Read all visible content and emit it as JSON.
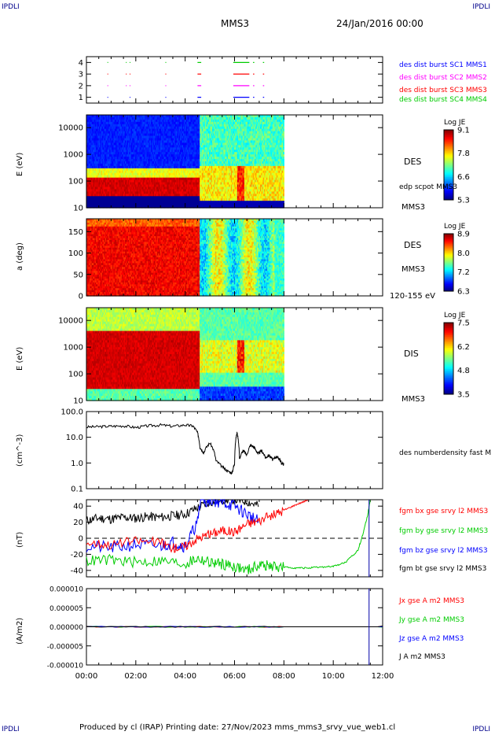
{
  "header": {
    "corner_tl": "IPDLI",
    "corner_tr": "IPDLI",
    "corner_bl": "IPDLI",
    "corner_br": "IPDLI",
    "spacecraft": "MMS3",
    "date": "24/Jan/2016 00:00"
  },
  "footer": {
    "text": "Produced by cl (IRAP)   Printing date: 27/Nov/2023   mms_mms3_srvy_vue_web1.cl"
  },
  "panels": {
    "burst": {
      "legend": [
        {
          "text": "des dist burst SC1 MMS1",
          "color": "#0000ff"
        },
        {
          "text": "des dist burst SC2 MMS2",
          "color": "#ff00ff"
        },
        {
          "text": "des dist burst SC3 MMS3",
          "color": "#ff0000"
        },
        {
          "text": "des dist burst SC4 MMS4",
          "color": "#00cc00"
        }
      ]
    },
    "des_energy": {
      "ylabel": "E (eV)",
      "label1": "DES",
      "label2": "edp scpot MMS3",
      "label3": "MMS3",
      "cbar_title": "Log JE",
      "cbar_ticks": [
        "9.1",
        "7.8",
        "6.6",
        "5.3"
      ]
    },
    "des_pitch": {
      "ylabel": "a (deg)",
      "label1": "DES",
      "label2": "MMS3",
      "label3": "120-155 eV",
      "cbar_title": "Log JE",
      "cbar_ticks": [
        "8.9",
        "8.0",
        "7.2",
        "6.3"
      ]
    },
    "dis_energy": {
      "ylabel": "E (eV)",
      "label1": "DIS",
      "label3": "MMS3",
      "cbar_title": "Log JE",
      "cbar_ticks": [
        "7.5",
        "6.2",
        "4.8",
        "3.5"
      ]
    },
    "density": {
      "ylabel": "(cm^-3)",
      "legend": "des numberdensity fast M"
    },
    "bfield": {
      "ylabel": "(nT)",
      "legend": [
        {
          "text": "fgm bx gse srvy l2 MMS3",
          "color": "#ff0000"
        },
        {
          "text": "fgm by gse srvy l2 MMS3",
          "color": "#00cc00"
        },
        {
          "text": "fgm bz gse srvy l2 MMS3",
          "color": "#0000ff"
        },
        {
          "text": "fgm bt gse srvy l2 MMS3",
          "color": "#000000"
        }
      ]
    },
    "current": {
      "ylabel": "(A/m2)",
      "legend": [
        {
          "text": "Jx gse A m2 MMS3",
          "color": "#ff0000"
        },
        {
          "text": "Jy gse A m2 MMS3",
          "color": "#00cc00"
        },
        {
          "text": "Jz gse A m2 MMS3",
          "color": "#0000ff"
        },
        {
          "text": "J A m2 MMS3",
          "color": "#000000"
        }
      ]
    }
  },
  "chart_data": [
    {
      "type": "scatter",
      "panel": "burst",
      "x_unit": "hours UT",
      "xlim": [
        0,
        12
      ],
      "yticks": [
        "1",
        "2",
        "3",
        "4"
      ],
      "ylim": [
        0.5,
        4.5
      ],
      "series": [
        {
          "name": "des dist burst SC1 MMS1",
          "level": 1,
          "color": "#0000ff",
          "intervals": [
            [
              0.85,
              0.88
            ],
            [
              1.75,
              1.78
            ],
            [
              3.2,
              3.23
            ],
            [
              4.5,
              4.65
            ],
            [
              5.95,
              6.6
            ],
            [
              6.75,
              6.8
            ],
            [
              7.15,
              7.2
            ]
          ]
        },
        {
          "name": "des dist burst SC2 MMS2",
          "level": 2,
          "color": "#ff00ff",
          "intervals": [
            [
              0.85,
              0.88
            ],
            [
              1.6,
              1.63
            ],
            [
              1.75,
              1.78
            ],
            [
              3.2,
              3.23
            ],
            [
              4.5,
              4.65
            ],
            [
              5.95,
              6.6
            ],
            [
              6.75,
              6.8
            ],
            [
              7.15,
              7.2
            ]
          ]
        },
        {
          "name": "des dist burst SC3 MMS3",
          "level": 3,
          "color": "#ff0000",
          "intervals": [
            [
              0.85,
              0.88
            ],
            [
              1.6,
              1.63
            ],
            [
              1.75,
              1.78
            ],
            [
              3.2,
              3.23
            ],
            [
              4.5,
              4.65
            ],
            [
              5.95,
              6.6
            ],
            [
              6.75,
              6.8
            ],
            [
              7.15,
              7.2
            ]
          ]
        },
        {
          "name": "des dist burst SC4 MMS4",
          "level": 4,
          "color": "#00cc00",
          "intervals": [
            [
              0.85,
              0.88
            ],
            [
              1.6,
              1.63
            ],
            [
              1.75,
              1.78
            ],
            [
              3.2,
              3.23
            ],
            [
              4.5,
              4.65
            ],
            [
              5.95,
              6.6
            ],
            [
              6.75,
              6.8
            ],
            [
              7.15,
              7.2
            ]
          ]
        }
      ]
    },
    {
      "type": "heatmap",
      "panel": "des_energy",
      "x_unit": "hours UT",
      "xlim": [
        0,
        12
      ],
      "y_scale": "log",
      "ylim": [
        10,
        30000
      ],
      "yticks": [
        "10000",
        "1000",
        "100",
        "10"
      ],
      "colorbar_label": "Log JE",
      "colorbar_range": [
        5.3,
        9.1
      ],
      "data_until_hour": 8.0
    },
    {
      "type": "heatmap",
      "panel": "des_pitch",
      "x_unit": "hours UT",
      "xlim": [
        0,
        12
      ],
      "ylim": [
        0,
        180
      ],
      "yticks": [
        "150",
        "100",
        "50",
        "0"
      ],
      "colorbar_label": "Log JE",
      "colorbar_range": [
        6.3,
        8.9
      ],
      "data_until_hour": 8.0
    },
    {
      "type": "heatmap",
      "panel": "dis_energy",
      "x_unit": "hours UT",
      "xlim": [
        0,
        12
      ],
      "y_scale": "log",
      "ylim": [
        10,
        30000
      ],
      "yticks": [
        "10000",
        "1000",
        "100",
        "10"
      ],
      "colorbar_label": "Log JE",
      "colorbar_range": [
        3.5,
        7.5
      ],
      "data_until_hour": 8.0
    },
    {
      "type": "line",
      "panel": "density",
      "x_unit": "hours UT",
      "xlim": [
        0,
        12
      ],
      "y_scale": "log",
      "ylim": [
        0.1,
        100
      ],
      "yticks": [
        "100.0",
        "10.0",
        "1.0",
        "0.1"
      ],
      "series": [
        {
          "name": "des numberdensity fast M",
          "color": "#000000",
          "x": [
            0.0,
            0.5,
            1.0,
            1.5,
            2.0,
            2.5,
            3.0,
            3.5,
            4.0,
            4.3,
            4.5,
            4.6,
            4.75,
            5.0,
            5.25,
            5.5,
            5.7,
            5.9,
            6.0,
            6.1,
            6.2,
            6.35,
            6.5,
            6.65,
            6.8,
            6.95,
            7.1,
            7.25,
            7.4,
            7.55,
            7.7,
            7.8,
            7.9,
            8.0
          ],
          "y": [
            25,
            26,
            27,
            28,
            24,
            28,
            30,
            27,
            30,
            28,
            15,
            4.0,
            2.5,
            6.0,
            1.2,
            0.7,
            0.5,
            0.4,
            0.9,
            15,
            1.5,
            3.0,
            2.0,
            5.0,
            4.0,
            2.2,
            3.0,
            1.6,
            2.0,
            1.3,
            1.8,
            1.5,
            1.0,
            0.9
          ]
        }
      ]
    },
    {
      "type": "line",
      "panel": "bfield",
      "x_unit": "hours UT",
      "xlim": [
        0,
        12
      ],
      "ylim": [
        -48,
        48
      ],
      "yticks": [
        "40",
        "20",
        "0",
        "-20",
        "-40"
      ],
      "series": [
        {
          "name": "fgm bx gse srvy l2 MMS3",
          "color": "#ff0000",
          "x": [
            0.0,
            1.0,
            2.0,
            3.0,
            3.5,
            4.0,
            4.5,
            5.0,
            5.5,
            6.0,
            6.5,
            7.0,
            7.5,
            8.0,
            8.5,
            9.0
          ],
          "y": [
            -5,
            -8,
            -3,
            -5,
            -12,
            -10,
            0,
            5,
            10,
            8,
            18,
            22,
            28,
            35,
            42,
            48
          ]
        },
        {
          "name": "fgm by gse srvy l2 MMS3",
          "color": "#00cc00",
          "x": [
            0.0,
            1.0,
            2.0,
            3.0,
            4.0,
            4.5,
            5.0,
            5.5,
            6.0,
            6.5,
            7.0,
            7.5,
            8.0,
            8.5,
            9.0,
            9.5,
            10.0,
            10.5,
            11.0,
            11.2,
            11.4,
            11.5
          ],
          "y": [
            -28,
            -27,
            -30,
            -28,
            -32,
            -25,
            -30,
            -32,
            -35,
            -40,
            -33,
            -35,
            -36,
            -37,
            -37,
            -36,
            -35,
            -30,
            -15,
            5,
            30,
            48
          ]
        },
        {
          "name": "fgm bz gse srvy l2 MMS3",
          "color": "#0000ff",
          "x": [
            0.0,
            1.0,
            2.0,
            3.0,
            3.5,
            4.0,
            4.5,
            4.6,
            5.0,
            5.5,
            6.0,
            6.5,
            7.0
          ],
          "y": [
            -10,
            -12,
            -8,
            -10,
            -5,
            -10,
            20,
            45,
            48,
            45,
            40,
            30,
            20
          ]
        },
        {
          "name": "fgm bt gse srvy l2 MMS3",
          "color": "#000000",
          "x": [
            0.0,
            0.5,
            1.0,
            1.5,
            2.0,
            2.5,
            3.0,
            3.5,
            4.0,
            4.5,
            5.0,
            5.5,
            6.0,
            6.5,
            7.0
          ],
          "y": [
            22,
            25,
            24,
            26,
            25,
            27,
            26,
            28,
            30,
            38,
            45,
            48,
            48,
            46,
            40
          ]
        }
      ]
    },
    {
      "type": "line",
      "panel": "current",
      "x_unit": "hours UT",
      "xlim": [
        0,
        12
      ],
      "ylim": [
        -0.0001,
        0.0001
      ],
      "yticks": [
        "0.000010",
        "0.000005",
        "0.000000",
        "-0.000005",
        "-0.000010"
      ],
      "series": [
        {
          "name": "Jx gse A m2 MMS3",
          "color": "#ff0000",
          "x": [
            0,
            8,
            11.8,
            12
          ],
          "y": [
            0,
            0,
            0,
            1e-06
          ]
        },
        {
          "name": "Jy gse A m2 MMS3",
          "color": "#00cc00",
          "x": [
            0,
            8,
            11.8,
            12
          ],
          "y": [
            0,
            0,
            0,
            -1e-06
          ]
        },
        {
          "name": "Jz gse A m2 MMS3",
          "color": "#0000ff",
          "x": [
            0,
            8,
            11.8,
            12
          ],
          "y": [
            0,
            0,
            0,
            0
          ]
        },
        {
          "name": "J A m2 MMS3",
          "color": "#000000",
          "x": [
            0,
            8,
            11.8,
            12
          ],
          "y": [
            0,
            0,
            0,
            2e-06
          ]
        }
      ],
      "vertical_marker_hour": 11.45
    }
  ],
  "time_axis": {
    "ticks": [
      "00:00",
      "02:00",
      "04:00",
      "06:00",
      "08:00",
      "10:00",
      "12:00"
    ]
  }
}
